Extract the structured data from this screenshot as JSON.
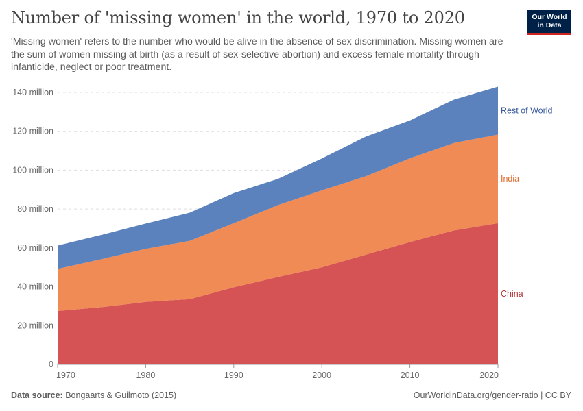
{
  "header": {
    "title": "Number of 'missing women' in the world, 1970 to 2020",
    "subtitle": "'Missing women' refers to the number who would be alive in the absence of sex discrimination. Missing women are the sum of women missing at birth (as a result of sex-selective abortion) and excess female mortality through infanticide, neglect or poor treatment.",
    "logo_text": "Our World in Data"
  },
  "footer": {
    "source_label": "Data source:",
    "source_text": "Bongaarts & Guilmoto (2015)",
    "url_text": "OurWorldinData.org/gender-ratio | CC BY"
  },
  "colors": {
    "china": "#d65355",
    "india": "#f08b55",
    "rest_of_world": "#5b82bd",
    "china_label": "#b13a3e",
    "india_label": "#e06a2c",
    "rest_label": "#3a5a9e"
  },
  "chart_data": {
    "type": "area",
    "stacked": true,
    "x": [
      1970,
      1975,
      1980,
      1985,
      1990,
      1995,
      2000,
      2005,
      2010,
      2015,
      2020
    ],
    "series": [
      {
        "name": "China",
        "values": [
          27.5,
          29.5,
          32.2,
          33.6,
          39.7,
          45,
          50,
          56.5,
          63,
          69,
          72.7
        ]
      },
      {
        "name": "India",
        "values": [
          21.7,
          24.7,
          27.3,
          30,
          33,
          37,
          39.6,
          40.4,
          43.1,
          45,
          45.6
        ]
      },
      {
        "name": "Rest of World",
        "values": [
          12,
          12.5,
          13,
          14.5,
          15.5,
          13.5,
          16.4,
          20.4,
          19.5,
          22.3,
          24.7
        ]
      }
    ],
    "xticks": [
      1970,
      1980,
      1990,
      2000,
      2010,
      2020
    ],
    "yticks": [
      0,
      20,
      40,
      60,
      80,
      100,
      120,
      140
    ],
    "ytick_labels": [
      "0",
      "20 million",
      "40 million",
      "60 million",
      "80 million",
      "100 million",
      "120 million",
      "140 million"
    ],
    "xlim": [
      1970,
      2020
    ],
    "ylim": [
      0,
      140
    ],
    "grid": "horizontal-dashed",
    "legend": "inline-right"
  }
}
